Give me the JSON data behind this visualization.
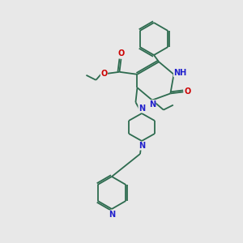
{
  "background_color": "#e8e8e8",
  "bond_color": "#2d6b4f",
  "atom_colors": {
    "N": "#2020cc",
    "O": "#cc0000",
    "H": "#888888",
    "C": "#2d6b4f"
  },
  "font_size_atom": 7,
  "line_width": 1.3
}
